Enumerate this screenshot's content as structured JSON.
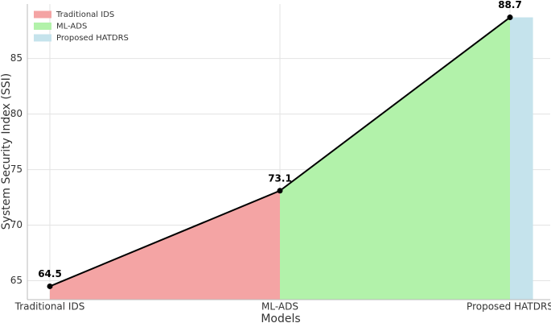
{
  "chart_data": {
    "type": "area",
    "xlabel": "Models",
    "ylabel": "System Security Index (SSI)",
    "categories": [
      "Traditional IDS",
      "ML-ADS",
      "Proposed HATDRS"
    ],
    "values": [
      64.5,
      73.1,
      88.7
    ],
    "colors": [
      "#f4a4a4",
      "#b2f2aa",
      "#c5e3ec"
    ],
    "line_color": "#000000",
    "ylim": [
      63.3,
      89.9
    ],
    "yticks": [
      65,
      70,
      75,
      80,
      85
    ],
    "grid": true,
    "legend": "upper left"
  }
}
